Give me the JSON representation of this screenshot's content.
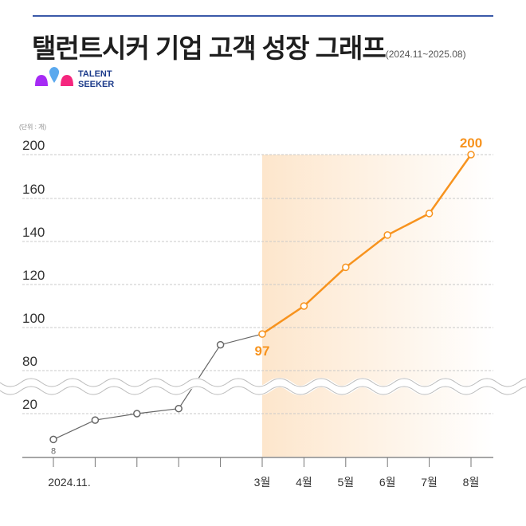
{
  "header": {
    "title": "탤런트시커 기업 고객 성장 그래프",
    "period": "(2024.11~2025.08)",
    "logo_text_line1": "TALENT",
    "logo_text_line2": "SEEKER"
  },
  "colors": {
    "accent": "#f7931e",
    "past_line": "#666666",
    "title_rule": "#3a59a8",
    "shade": "#fde6cc"
  },
  "chart_data": {
    "type": "line",
    "unit_label": "(단위 : 개)",
    "y_ticks": [
      200,
      160,
      140,
      120,
      100,
      80,
      20
    ],
    "y_axis_broken_between": [
      20,
      80
    ],
    "x_tick_labels": [
      "2024.11.",
      "",
      "",
      "",
      "",
      "3월",
      "4월",
      "5월",
      "6월",
      "7월",
      "8월"
    ],
    "series": [
      {
        "values": [
          8,
          17,
          20,
          27,
          92,
          97,
          110,
          128,
          143,
          153,
          200
        ]
      }
    ],
    "highlight_from_index": 5,
    "data_labels": [
      {
        "index": 0,
        "text": "8"
      },
      {
        "index": 5,
        "text": "97"
      },
      {
        "index": 10,
        "text": "200"
      }
    ],
    "grid": true
  }
}
